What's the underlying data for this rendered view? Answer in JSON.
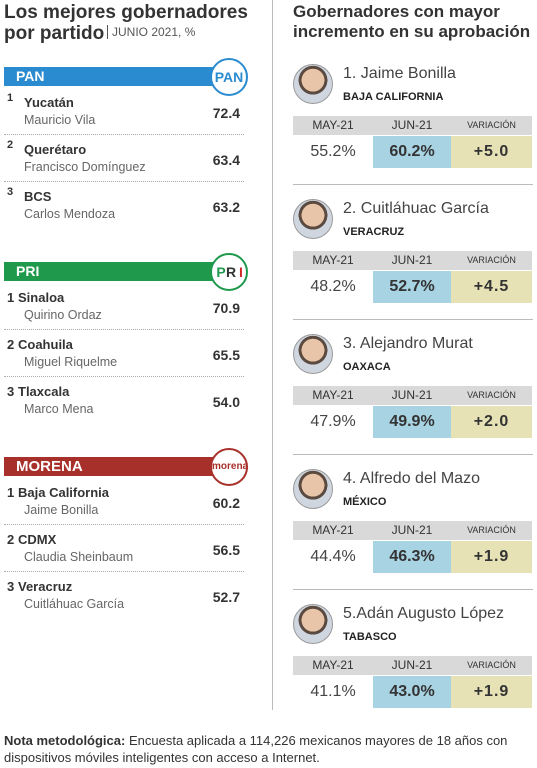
{
  "left": {
    "title": "Los mejores gobernadores por partido",
    "subtitle": "JUNIO 2021, %",
    "parties": [
      {
        "name": "PAN",
        "logo": "PAN",
        "color": "#2a8bd0",
        "rows": [
          {
            "rank": "1",
            "state": "Yucatán",
            "governor": "Mauricio Vila",
            "value": "72.4"
          },
          {
            "rank": "2",
            "state": "Querétaro",
            "governor": "Francisco Domínguez",
            "value": "63.4"
          },
          {
            "rank": "3",
            "state": "BCS",
            "governor": "Carlos Mendoza",
            "value": "63.2"
          }
        ]
      },
      {
        "name": "PRI",
        "logo": [
          "P",
          "R",
          "I"
        ],
        "color": "#1f9a4c",
        "rows": [
          {
            "rank": "1",
            "state": "Sinaloa",
            "governor": "Quirino Ordaz",
            "value": "70.9"
          },
          {
            "rank": "2",
            "state": "Coahuila",
            "governor": "Miguel Riquelme",
            "value": "65.5"
          },
          {
            "rank": "3",
            "state": "Tlaxcala",
            "governor": "Marco Mena",
            "value": "54.0"
          }
        ]
      },
      {
        "name": "MORENA",
        "logo": "morena",
        "color": "#a8302a",
        "rows": [
          {
            "rank": "1",
            "state": "Baja California",
            "governor": "Jaime Bonilla",
            "value": "60.2"
          },
          {
            "rank": "2",
            "state": "CDMX",
            "governor": "Claudia Sheinbaum",
            "value": "56.5"
          },
          {
            "rank": "3",
            "state": "Veracruz",
            "governor": "Cuitláhuac García",
            "value": "52.7"
          }
        ]
      }
    ]
  },
  "right": {
    "title": "Gobernadores con mayor incremento en su aprobación",
    "headers": [
      "MAY-21",
      "JUN-21",
      "VARIACIÓN"
    ],
    "cards": [
      {
        "name": "1. Jaime Bonilla",
        "state": "BAJA CALIFORNIA",
        "may": "55.2%",
        "jun": "60.2%",
        "change": "+5.0"
      },
      {
        "name": "2. Cuitláhuac García",
        "state": "VERACRUZ",
        "may": "48.2%",
        "jun": "52.7%",
        "change": "+4.5"
      },
      {
        "name": "3. Alejandro Murat",
        "state": "OAXACA",
        "may": "47.9%",
        "jun": "49.9%",
        "change": "+2.0"
      },
      {
        "name": "4. Alfredo del Mazo",
        "state": "MÉXICO",
        "may": "44.4%",
        "jun": "46.3%",
        "change": "+1.9"
      },
      {
        "name": "5.Adán Augusto López",
        "state": "TABASCO",
        "may": "41.1%",
        "jun": "43.0%",
        "change": "+1.9"
      }
    ]
  },
  "note": {
    "label": "Nota metodológica:",
    "text": "Encuesta aplicada a 114,226 mexicanos mayores de 18 años con dispositivos móviles inteligentes con acceso a Internet."
  }
}
